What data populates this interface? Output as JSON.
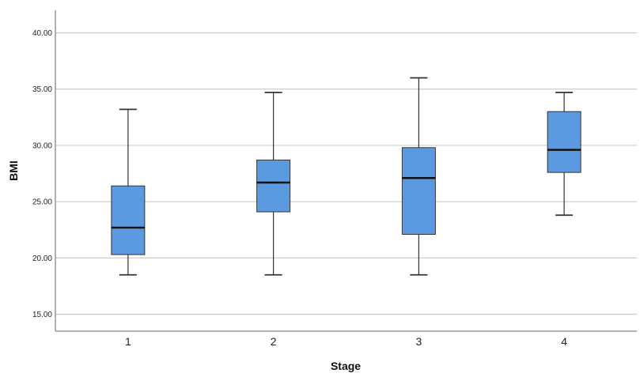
{
  "chart_data": {
    "type": "boxplot",
    "xlabel": "Stage",
    "ylabel": "BMI",
    "ylim": [
      13.5,
      42
    ],
    "yticks": [
      "15.00",
      "20.00",
      "25.00",
      "30.00",
      "35.00",
      "40.00"
    ],
    "ytick_values": [
      15,
      20,
      25,
      30,
      35,
      40
    ],
    "grid": true,
    "categories": [
      "1",
      "2",
      "3",
      "4"
    ],
    "boxes": [
      {
        "category": "1",
        "min": 18.5,
        "q1": 20.3,
        "median": 22.7,
        "q3": 26.4,
        "max": 33.2
      },
      {
        "category": "2",
        "min": 18.5,
        "q1": 24.1,
        "median": 26.7,
        "q3": 28.7,
        "max": 34.7
      },
      {
        "category": "3",
        "min": 18.5,
        "q1": 22.1,
        "median": 27.1,
        "q3": 29.8,
        "max": 36.0
      },
      {
        "category": "4",
        "min": 23.8,
        "q1": 27.6,
        "median": 29.6,
        "q3": 33.0,
        "max": 34.7
      }
    ],
    "colors": {
      "box_fill": "#5b9ae0",
      "box_stroke": "#333333",
      "median": "#111111",
      "grid": "#cccccc",
      "axis": "#666666"
    }
  }
}
